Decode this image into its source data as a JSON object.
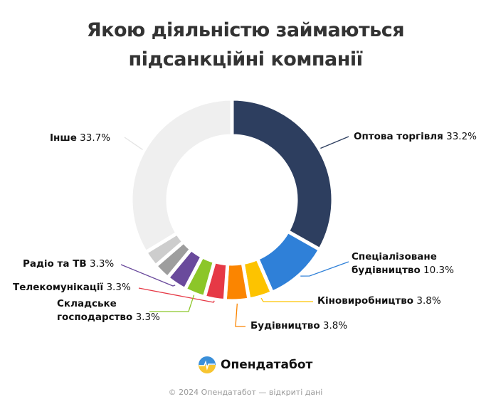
{
  "chart_data": {
    "type": "pie",
    "donut": true,
    "title_lines": [
      "Якою діяльністю займаються",
      "підсанкційні компанії"
    ],
    "slices": [
      {
        "name": "Оптова торгівля",
        "value": 33.2,
        "value_label": "33.2%",
        "color": "#2d3e5f"
      },
      {
        "name_lines": [
          "Спеціалізоване",
          "будівництво"
        ],
        "name": "Спеціалізоване будівництво",
        "value": 10.3,
        "value_label": "10.3%",
        "color": "#2f80d8"
      },
      {
        "name": "Кіновиробництво",
        "value": 3.8,
        "value_label": "3.8%",
        "color": "#fdc300"
      },
      {
        "name": "Будівництво",
        "value": 3.8,
        "value_label": "3.8%",
        "color": "#fb8500"
      },
      {
        "name": "Телекомунікації",
        "value": 3.3,
        "value_label": "3.3%",
        "color": "#e63946"
      },
      {
        "name_lines": [
          "Складське",
          "господарство"
        ],
        "name": "Складське господарство",
        "value": 3.3,
        "value_label": "3.3%",
        "color": "#8cc629"
      },
      {
        "name": "Радіо та ТВ",
        "value": 3.3,
        "value_label": "3.3%",
        "color": "#6a4a9c"
      },
      {
        "name": "",
        "value": 2.65,
        "color": "#9e9e9e"
      },
      {
        "name": "",
        "value": 2.65,
        "color": "#cdcdcd"
      },
      {
        "name": "Інше",
        "value": 33.7,
        "value_label": "33.7%",
        "color": "#efefef"
      }
    ]
  },
  "brand": {
    "name": "Опендатабот"
  },
  "footer": "© 2024 Опендатабот — відкриті дані"
}
